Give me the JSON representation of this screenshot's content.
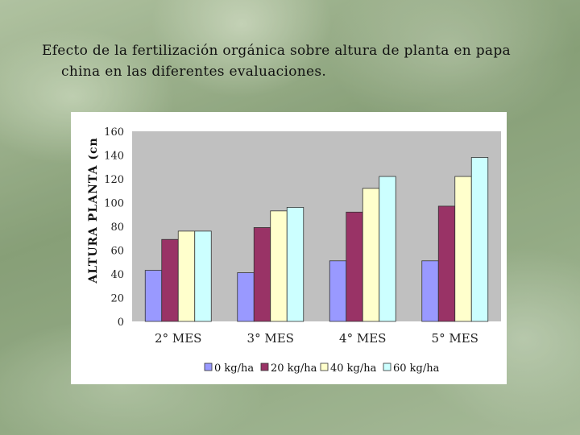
{
  "slide": {
    "title_line1": "Efecto de la fertilización orgánica sobre altura de planta en papa",
    "title_line2": "china en las diferentes evaluaciones."
  },
  "chart_data": {
    "type": "bar",
    "ylabel": "ALTURA PLANTA (cn",
    "xlabel": "",
    "ylim": [
      0,
      160
    ],
    "yticks": [
      0,
      20,
      40,
      60,
      80,
      100,
      120,
      140,
      160
    ],
    "categories": [
      "2° MES",
      "3° MES",
      "4° MES",
      "5° MES"
    ],
    "series": [
      {
        "name": "0 kg/ha",
        "color": "#9999ff",
        "values": [
          43,
          41,
          51,
          51
        ]
      },
      {
        "name": "20 kg/ha",
        "color": "#993366",
        "values": [
          69,
          79,
          92,
          97
        ]
      },
      {
        "name": "40 kg/ha",
        "color": "#ffffcc",
        "values": [
          76,
          93,
          112,
          122
        ]
      },
      {
        "name": "60 kg/ha",
        "color": "#ccffff",
        "values": [
          76,
          96,
          122,
          138
        ]
      }
    ],
    "plot_background": "#c0c0c0",
    "grid": false,
    "legend_position": "bottom"
  }
}
